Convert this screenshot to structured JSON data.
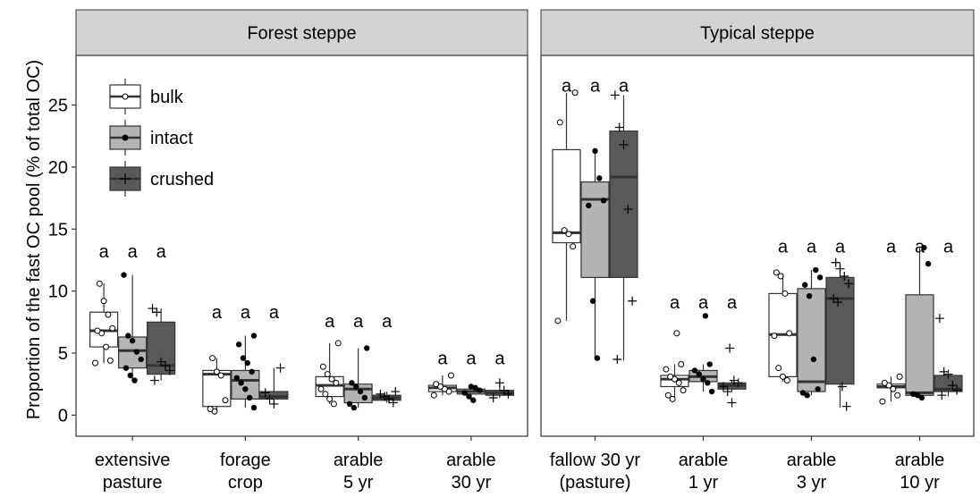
{
  "chart_data": {
    "type": "box",
    "ylabel": "Proportion of the fast OC pool (% of total OC)",
    "ylim": [
      -1.7,
      29
    ],
    "yticks": [
      0,
      5,
      10,
      15,
      20,
      25
    ],
    "grid": false,
    "legend_position": "top-left",
    "series": [
      {
        "name": "bulk",
        "fill": "#ffffff",
        "point_marker": "open-circle"
      },
      {
        "name": "intact",
        "fill": "#b4b4b4",
        "point_marker": "filled-circle"
      },
      {
        "name": "crushed",
        "fill": "#595959",
        "point_marker": "plus"
      }
    ],
    "panels": [
      {
        "title": "Forest steppe",
        "categories": [
          {
            "label": [
              "extensive",
              "pasture"
            ],
            "letters": [
              "a",
              "a",
              "a"
            ],
            "letters_y": 13.2,
            "boxes": [
              {
                "lo": 4.2,
                "q1": 5.5,
                "med": 6.8,
                "q3": 8.3,
                "hi": 10.6,
                "points": [
                  4.2,
                  4.4,
                  5.5,
                  6.6,
                  6.8,
                  7.0,
                  8.1,
                  9.2,
                  10.6
                ]
              },
              {
                "lo": 2.8,
                "q1": 3.8,
                "med": 5.2,
                "q3": 6.3,
                "hi": 11.3,
                "points": [
                  2.8,
                  3.2,
                  3.8,
                  4.5,
                  5.1,
                  6.0,
                  6.4,
                  11.3
                ]
              },
              {
                "lo": 2.8,
                "q1": 3.3,
                "med": 4.0,
                "q3": 7.5,
                "hi": 8.6,
                "points": [
                  2.8,
                  3.6,
                  4.0,
                  4.3,
                  8.3,
                  8.6
                ]
              }
            ]
          },
          {
            "label": [
              "forage",
              "crop"
            ],
            "letters": [
              "a",
              "a",
              "a"
            ],
            "letters_y": 8.3,
            "boxes": [
              {
                "lo": 0.3,
                "q1": 0.7,
                "med": 3.3,
                "q3": 3.6,
                "hi": 4.6,
                "points": [
                  0.3,
                  0.5,
                  1.2,
                  3.2,
                  3.5,
                  4.6
                ]
              },
              {
                "lo": 0.6,
                "q1": 1.3,
                "med": 2.8,
                "q3": 3.6,
                "hi": 6.4,
                "points": [
                  0.6,
                  1.4,
                  2.1,
                  2.6,
                  3.0,
                  3.5,
                  4.2,
                  4.6,
                  5.7,
                  6.4
                ]
              },
              {
                "lo": 0.9,
                "q1": 1.3,
                "med": 1.5,
                "q3": 1.9,
                "hi": 3.8,
                "points": [
                  0.9,
                  1.3,
                  1.8,
                  3.8
                ]
              }
            ]
          },
          {
            "label": [
              "arable",
              "5 yr"
            ],
            "letters": [
              "a",
              "a",
              "a"
            ],
            "letters_y": 7.6,
            "boxes": [
              {
                "lo": 0.9,
                "q1": 1.5,
                "med": 2.4,
                "q3": 3.1,
                "hi": 5.8,
                "points": [
                  0.9,
                  1.3,
                  1.7,
                  2.1,
                  2.6,
                  2.9,
                  3.3,
                  3.9,
                  5.8
                ]
              },
              {
                "lo": 0.6,
                "q1": 1.0,
                "med": 2.1,
                "q3": 2.5,
                "hi": 5.4,
                "points": [
                  0.6,
                  0.9,
                  1.4,
                  1.9,
                  2.3,
                  2.6,
                  5.4
                ]
              },
              {
                "lo": 1.0,
                "q1": 1.2,
                "med": 1.4,
                "q3": 1.6,
                "hi": 1.9,
                "points": [
                  1.0,
                  1.3,
                  1.5,
                  1.7,
                  1.9
                ]
              }
            ]
          },
          {
            "label": [
              "arable",
              "30 yr"
            ],
            "letters": [
              "a",
              "a",
              "a"
            ],
            "letters_y": 4.6,
            "boxes": [
              {
                "lo": 1.6,
                "q1": 1.9,
                "med": 2.2,
                "q3": 2.4,
                "hi": 3.2,
                "points": [
                  1.6,
                  1.9,
                  2.1,
                  2.3,
                  2.5,
                  3.2
                ]
              },
              {
                "lo": 1.2,
                "q1": 1.7,
                "med": 1.9,
                "q3": 2.1,
                "hi": 2.3,
                "points": [
                  1.2,
                  1.5,
                  1.8,
                  2.0,
                  2.2,
                  2.3
                ]
              },
              {
                "lo": 1.4,
                "q1": 1.6,
                "med": 1.8,
                "q3": 2.0,
                "hi": 2.6,
                "points": [
                  1.4,
                  1.7,
                  2.0,
                  2.6
                ]
              }
            ]
          }
        ]
      },
      {
        "title": "Typical steppe",
        "categories": [
          {
            "label": [
              "fallow 30 yr",
              "(pasture)"
            ],
            "letters": [
              "a",
              "a",
              "a"
            ],
            "letters_y": 26.6,
            "boxes": [
              {
                "lo": 7.6,
                "q1": 13.9,
                "med": 14.7,
                "q3": 21.4,
                "hi": 26.0,
                "points": [
                  7.6,
                  13.6,
                  14.6,
                  14.9,
                  23.6,
                  26.0
                ]
              },
              {
                "lo": 4.6,
                "q1": 11.1,
                "med": 17.4,
                "q3": 18.8,
                "hi": 21.3,
                "points": [
                  4.6,
                  9.2,
                  16.9,
                  17.3,
                  19.1,
                  21.3
                ]
              },
              {
                "lo": 4.4,
                "q1": 11.1,
                "med": 19.2,
                "q3": 22.9,
                "hi": 25.8,
                "points": [
                  4.5,
                  9.2,
                  16.6,
                  21.8,
                  23.2,
                  25.8
                ]
              }
            ]
          },
          {
            "label": [
              "arable",
              "1 yr"
            ],
            "letters": [
              "a",
              "a",
              "a"
            ],
            "letters_y": 9.1,
            "boxes": [
              {
                "lo": 1.3,
                "q1": 2.3,
                "med": 2.9,
                "q3": 3.2,
                "hi": 4.1,
                "points": [
                  1.3,
                  1.6,
                  2.0,
                  2.6,
                  2.9,
                  3.1,
                  3.7,
                  4.1,
                  6.6
                ]
              },
              {
                "lo": 1.9,
                "q1": 2.7,
                "med": 3.1,
                "q3": 3.6,
                "hi": 4.1,
                "points": [
                  1.9,
                  2.6,
                  2.9,
                  3.3,
                  3.6,
                  4.1,
                  8.0
                ]
              },
              {
                "lo": 1.9,
                "q1": 2.1,
                "med": 2.4,
                "q3": 2.6,
                "hi": 2.8,
                "points": [
                  1.0,
                  1.9,
                  2.3,
                  2.6,
                  2.8,
                  5.4
                ]
              }
            ]
          },
          {
            "label": [
              "arable",
              "3 yr"
            ],
            "letters": [
              "a",
              "a",
              "a"
            ],
            "letters_y": 13.6,
            "boxes": [
              {
                "lo": 2.7,
                "q1": 3.1,
                "med": 6.5,
                "q3": 9.8,
                "hi": 11.4,
                "points": [
                  2.8,
                  3.1,
                  3.8,
                  6.4,
                  6.6,
                  9.8,
                  11.2,
                  11.5
                ]
              },
              {
                "lo": 1.6,
                "q1": 1.9,
                "med": 2.7,
                "q3": 10.2,
                "hi": 11.7,
                "points": [
                  1.6,
                  1.8,
                  2.1,
                  4.5,
                  9.6,
                  10.5,
                  11.1,
                  11.7
                ]
              },
              {
                "lo": 0.6,
                "q1": 2.5,
                "med": 9.4,
                "q3": 11.1,
                "hi": 12.3,
                "points": [
                  0.7,
                  2.3,
                  9.1,
                  9.4,
                  10.6,
                  11.2,
                  11.8,
                  12.3
                ]
              }
            ]
          },
          {
            "label": [
              "arable",
              "10 yr"
            ],
            "letters": [
              "a",
              "a",
              "a"
            ],
            "letters_y": 13.6,
            "boxes": [
              {
                "lo": 1.1,
                "q1": 2.2,
                "med": 2.3,
                "q3": 2.5,
                "hi": 3.1,
                "points": [
                  1.1,
                  1.6,
                  2.1,
                  2.4,
                  2.6,
                  3.1
                ]
              },
              {
                "lo": 1.4,
                "q1": 1.6,
                "med": 1.8,
                "q3": 9.7,
                "hi": 13.5,
                "points": [
                  1.4,
                  1.6,
                  1.7,
                  12.2,
                  13.5
                ]
              },
              {
                "lo": 1.5,
                "q1": 1.9,
                "med": 2.1,
                "q3": 3.2,
                "hi": 3.3,
                "points": [
                  1.6,
                  2.0,
                  2.4,
                  3.3,
                  3.5,
                  7.8
                ]
              }
            ]
          }
        ]
      }
    ]
  }
}
